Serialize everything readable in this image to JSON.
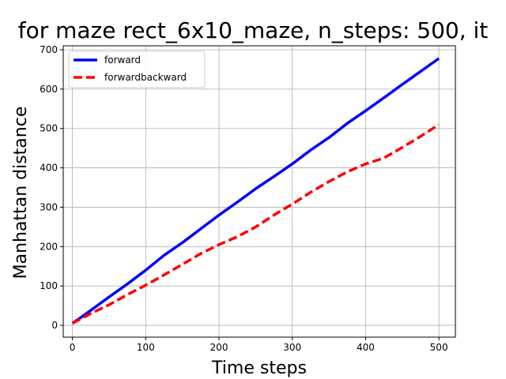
{
  "chart_data": {
    "type": "line",
    "title": "for maze rect_6x10_maze, n_steps: 500, it",
    "xlabel": "Time steps",
    "ylabel": "Manhattan distance",
    "xlim": [
      -12.5,
      522.5
    ],
    "ylim": [
      -30,
      710
    ],
    "xticks": [
      0,
      100,
      200,
      300,
      400,
      500
    ],
    "yticks": [
      0,
      100,
      200,
      300,
      400,
      500,
      600,
      700
    ],
    "grid": true,
    "legend_position": "top-left",
    "series": [
      {
        "name": "forward",
        "color": "#0000ff",
        "style": "solid",
        "x": [
          0,
          10,
          25,
          50,
          75,
          100,
          125,
          150,
          175,
          200,
          225,
          250,
          275,
          300,
          325,
          350,
          375,
          400,
          425,
          450,
          475,
          500
        ],
        "y": [
          5,
          18,
          38,
          72,
          105,
          140,
          178,
          210,
          245,
          280,
          313,
          347,
          378,
          410,
          445,
          477,
          513,
          545,
          578,
          612,
          645,
          678
        ]
      },
      {
        "name": "forwardbackward",
        "color": "#ff0000",
        "style": "dashed",
        "x": [
          0,
          10,
          25,
          50,
          75,
          100,
          125,
          150,
          175,
          200,
          225,
          250,
          275,
          300,
          325,
          350,
          375,
          400,
          425,
          450,
          475,
          500
        ],
        "y": [
          5,
          15,
          30,
          52,
          78,
          102,
          128,
          155,
          182,
          205,
          225,
          250,
          280,
          308,
          338,
          365,
          390,
          410,
          425,
          452,
          480,
          510
        ]
      }
    ]
  }
}
